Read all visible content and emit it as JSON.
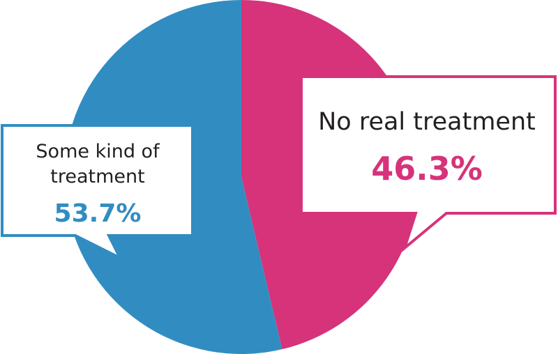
{
  "chart_data": {
    "type": "pie",
    "slices": [
      {
        "label": "No real treatment",
        "label_lines": [
          "No real treatment"
        ],
        "value": 46.3,
        "value_label": "46.3%",
        "color": "#d6337a"
      },
      {
        "label": "Some kind of treatment",
        "label_lines": [
          "Some kind of",
          "treatment"
        ],
        "value": 53.7,
        "value_label": "53.7%",
        "color": "#318dc1"
      }
    ],
    "start_angle": "12 o'clock",
    "direction": "clockwise",
    "legend": "callouts"
  }
}
